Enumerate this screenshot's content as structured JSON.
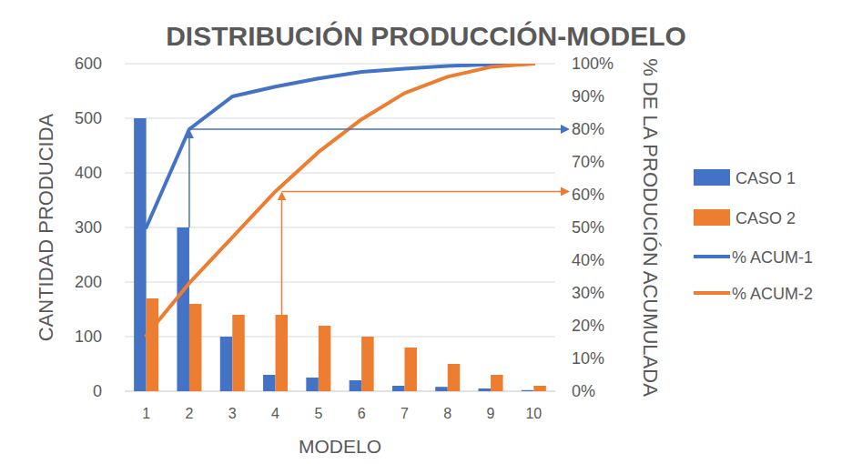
{
  "chart_data": {
    "type": "bar",
    "title": "DISTRIBUCIÓN PRODUCCIÓN-MODELO",
    "x_label": "MODELO",
    "y_label": "CANTIDAD PRODUCIDA",
    "y2_label": "% DE LA PRODUCIÓN ACUMULADA",
    "categories": [
      "1",
      "2",
      "3",
      "4",
      "5",
      "6",
      "7",
      "8",
      "9",
      "10"
    ],
    "series": [
      {
        "name": "CASO 1",
        "type": "bar",
        "color": "#4472c4",
        "values": [
          500,
          300,
          100,
          30,
          25,
          20,
          10,
          8,
          5,
          2
        ]
      },
      {
        "name": "CASO 2",
        "type": "bar",
        "color": "#ed7d31",
        "values": [
          170,
          160,
          140,
          140,
          120,
          100,
          80,
          50,
          30,
          10
        ]
      },
      {
        "name": "% ACUM-1",
        "type": "line",
        "axis": "y2",
        "color": "#4472c4",
        "values": [
          50,
          80,
          90,
          93,
          95.5,
          97.5,
          98.5,
          99.3,
          99.8,
          100
        ]
      },
      {
        "name": "% ACUM-2",
        "type": "line",
        "axis": "y2",
        "color": "#ed7d31",
        "values": [
          17,
          33,
          47,
          61,
          73,
          83,
          91,
          96,
          99,
          100
        ]
      }
    ],
    "ylim": [
      0,
      600
    ],
    "yticks": [
      0,
      100,
      200,
      300,
      400,
      500,
      600
    ],
    "y2lim": [
      0,
      100
    ],
    "y2ticks": [
      {
        "value": 0,
        "label": "0%"
      },
      {
        "value": 10,
        "label": "10%"
      },
      {
        "value": 20,
        "label": "20%"
      },
      {
        "value": 30,
        "label": "30%"
      },
      {
        "value": 40,
        "label": "40%"
      },
      {
        "value": 50,
        "label": "50%"
      },
      {
        "value": 60,
        "label": "60%"
      },
      {
        "value": 70,
        "label": "70%"
      },
      {
        "value": 80,
        "label": "80%"
      },
      {
        "value": 90,
        "label": "90%"
      },
      {
        "value": 100,
        "label": "100%"
      }
    ],
    "grid": true,
    "legend": "right"
  }
}
